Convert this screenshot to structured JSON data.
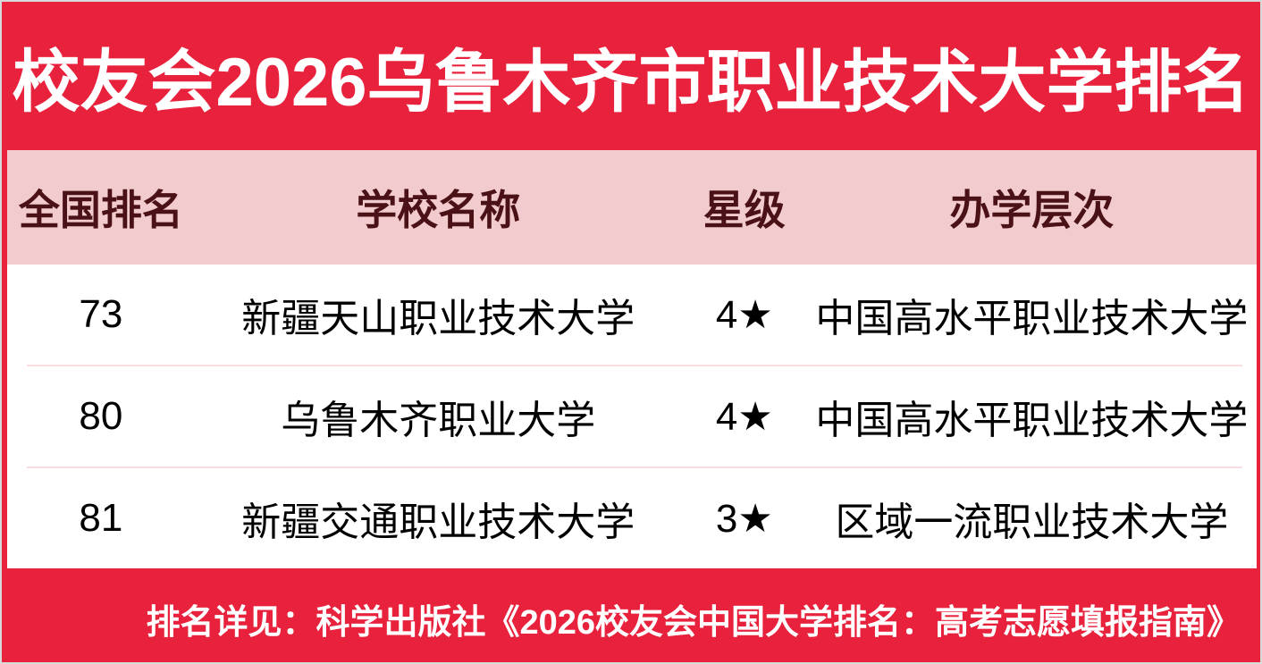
{
  "chart_data": {
    "type": "table",
    "title": "校友会2026乌鲁木齐市职业技术大学排名",
    "columns": [
      "全国排名",
      "学校名称",
      "星级",
      "办学层次"
    ],
    "rows": [
      [
        "73",
        "新疆天山职业技术大学",
        "4★",
        "中国高水平职业技术大学"
      ],
      [
        "80",
        "乌鲁木齐职业大学",
        "4★",
        "中国高水平职业技术大学"
      ],
      [
        "81",
        "新疆交通职业技术大学",
        "3★",
        "区域一流职业技术大学"
      ]
    ],
    "footnote": "排名详见：科学出版社《2026校友会中国大学排名：高考志愿填报指南》"
  },
  "colors": {
    "background_red": "#E8213C",
    "table_header_pink": "#F2CBCE",
    "table_header_text_maroon": "#4A1216",
    "row_background": "#FFFFFF",
    "row_text": "#000000",
    "row_divider_pink": "#FADDE0",
    "title_text": "#FFFFFF",
    "footnote_text": "#FFFFFF"
  }
}
